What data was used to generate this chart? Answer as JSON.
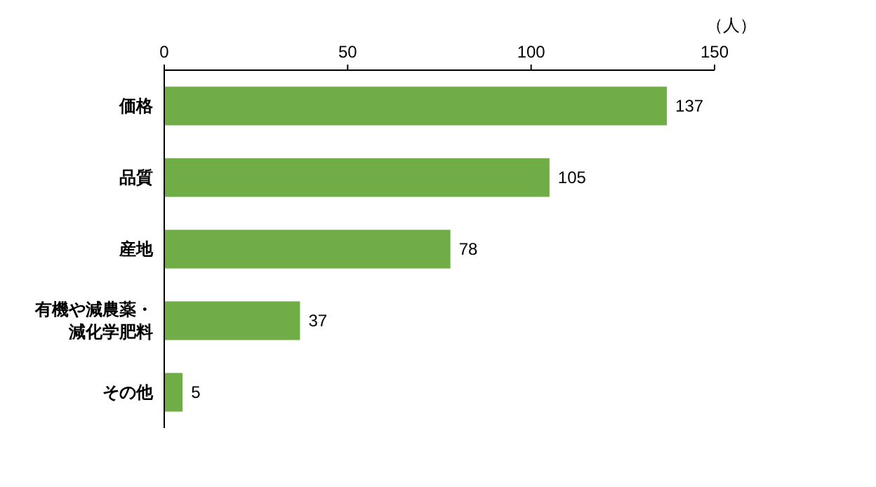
{
  "chart_data": {
    "type": "bar",
    "orientation": "horizontal",
    "xlabel": "（人）",
    "categories": [
      "価格",
      "品質",
      "産地",
      "有機や減農薬・減化学肥料",
      "その他"
    ],
    "values": [
      137,
      105,
      78,
      37,
      5
    ],
    "color": "#70ad47",
    "xlim": [
      0,
      150
    ],
    "xticks": [
      0,
      50,
      100,
      150
    ],
    "data_labels": true,
    "grid": false
  }
}
